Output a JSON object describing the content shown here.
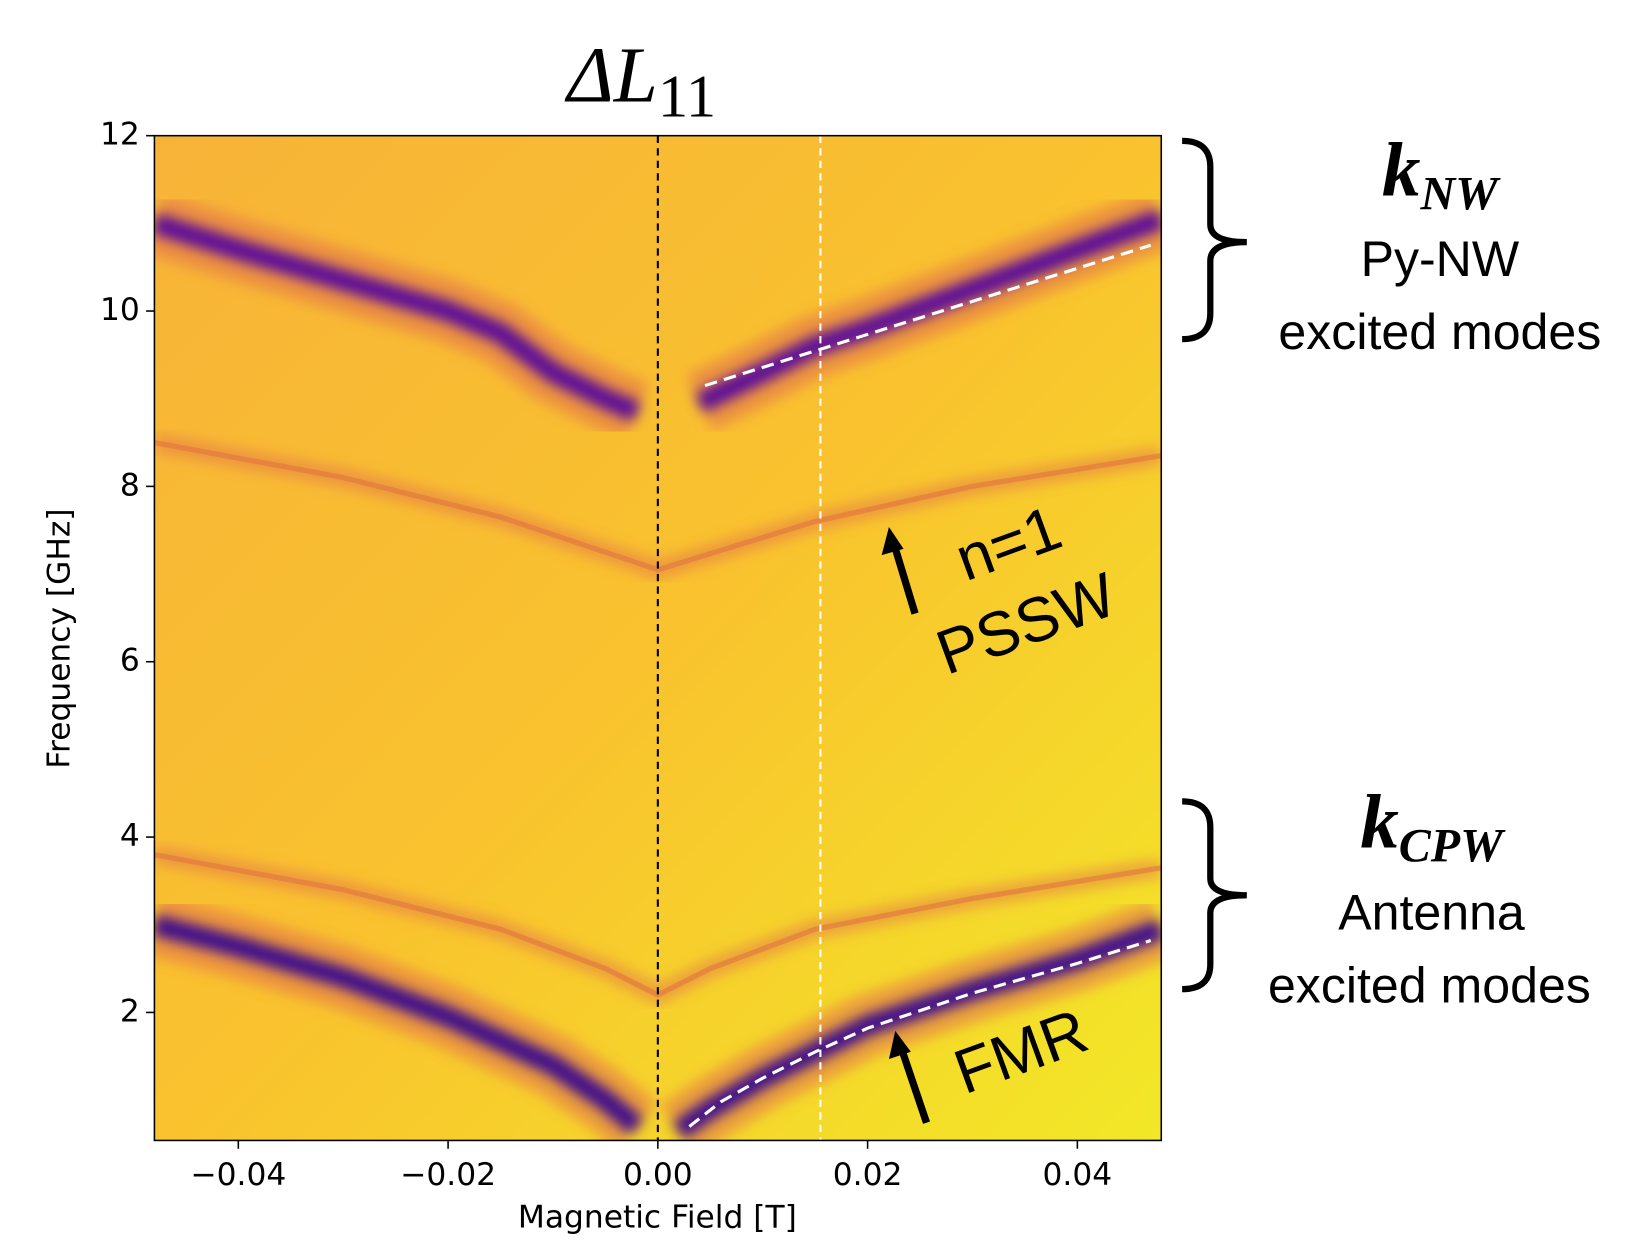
{
  "chart_data": {
    "type": "line",
    "title": {
      "text": "ΔL",
      "sub": "11"
    },
    "x_label": "Magnetic Field [T]",
    "y_label": "Frequency [GHz]",
    "xlim": [
      -0.048,
      0.048
    ],
    "ylim": [
      0.54,
      12
    ],
    "xticks": [
      {
        "value": -0.04,
        "label": "−0.04"
      },
      {
        "value": -0.02,
        "label": "−0.02"
      },
      {
        "value": 0,
        "label": "0.00"
      },
      {
        "value": 0.02,
        "label": "0.02"
      },
      {
        "value": 0.04,
        "label": "0.04"
      }
    ],
    "yticks": [
      2,
      4,
      6,
      8,
      10,
      12
    ],
    "bands": [
      {
        "color": "#4c02a1",
        "x": [
          -0.048,
          -0.04,
          -0.03,
          -0.02,
          -0.015,
          -0.01,
          -0.005,
          -0.002,
          null,
          0.004,
          0.01,
          0.015,
          0.02,
          0.03,
          0.04,
          0.048
        ],
        "values": [
          11.0,
          10.7,
          10.35,
          10.0,
          9.75,
          9.3,
          9.0,
          8.85,
          null,
          8.95,
          9.3,
          9.6,
          9.8,
          10.25,
          10.7,
          11.05
        ]
      },
      {
        "color": "#e0743f",
        "x": [
          -0.048,
          -0.03,
          -0.015,
          0,
          0.015,
          0.03,
          0.048
        ],
        "values": [
          8.5,
          8.1,
          7.65,
          7.05,
          7.6,
          8.0,
          8.35
        ]
      },
      {
        "color": "#e0743f",
        "x": [
          -0.048,
          -0.03,
          -0.015,
          -0.005,
          0,
          0.005,
          0.015,
          0.03,
          0.048
        ],
        "values": [
          3.8,
          3.4,
          2.95,
          2.5,
          2.2,
          2.5,
          2.95,
          3.3,
          3.65
        ]
      },
      {
        "color": "#2c0594",
        "x": [
          -0.048,
          -0.04,
          -0.03,
          -0.02,
          -0.01,
          -0.005,
          -0.002,
          null,
          0.002,
          0.005,
          0.01,
          0.02,
          0.03,
          0.04,
          0.048
        ],
        "values": [
          3.0,
          2.75,
          2.4,
          1.95,
          1.4,
          1.0,
          0.7,
          null,
          0.65,
          0.9,
          1.25,
          1.85,
          2.25,
          2.6,
          2.95
        ]
      }
    ],
    "series": [
      {
        "color": "#ffffff",
        "x": [
          0.0045,
          0.047
        ],
        "values": [
          9.15,
          10.75
        ]
      },
      {
        "color": "#ffffff",
        "x": [
          0.003,
          0.006,
          0.01,
          0.015,
          0.02,
          0.03,
          0.04,
          0.047
        ],
        "values": [
          0.7,
          0.98,
          1.25,
          1.55,
          1.82,
          2.22,
          2.56,
          2.82
        ]
      }
    ],
    "vlines": [
      {
        "x": 0,
        "color": "#000000"
      },
      {
        "x": 0.0155,
        "color": "#ffffff"
      }
    ],
    "annotations": [
      {
        "text": "k",
        "sub": "NW"
      },
      {
        "text": "Py-NW"
      },
      {
        "text": "excited modes"
      },
      {
        "text": "k",
        "sub": "CPW"
      },
      {
        "text": "Antenna"
      },
      {
        "text": "excited modes"
      },
      {
        "text": "n=1"
      },
      {
        "text": "PSSW"
      },
      {
        "text": "FMR"
      }
    ]
  }
}
